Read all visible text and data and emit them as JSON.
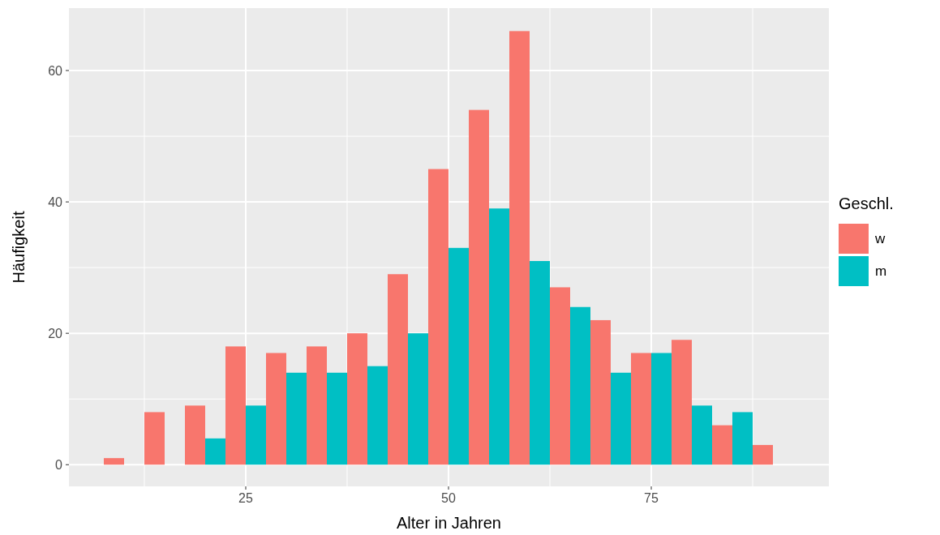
{
  "chart_data": {
    "type": "histogram",
    "xlabel": "Alter in Jahren",
    "ylabel": "Häufigkeit",
    "legend_title": "Geschl.",
    "legend": "right",
    "bins": [
      7.5,
      12.5,
      17.5,
      22.5,
      27.5,
      32.5,
      37.5,
      42.5,
      47.5,
      52.5,
      57.5,
      62.5,
      67.5,
      72.5,
      77.5,
      82.5,
      87.5,
      92.5
    ],
    "series": [
      {
        "name": "w",
        "color": "#f8766d",
        "values": [
          1,
          8,
          9,
          18,
          17,
          18,
          20,
          29,
          45,
          54,
          66,
          27,
          22,
          17,
          19,
          6,
          3
        ]
      },
      {
        "name": "m",
        "color": "#00bfc4",
        "values": [
          0,
          0,
          4,
          9,
          14,
          14,
          15,
          20,
          33,
          39,
          31,
          24,
          14,
          17,
          9,
          8,
          0
        ]
      }
    ],
    "xlim": [
      3.2,
      96.9
    ],
    "xticks": [
      25,
      50,
      75
    ],
    "ylim": [
      -3.3,
      69.5
    ],
    "yticks": [
      0,
      20,
      40,
      60
    ],
    "grid": true
  }
}
